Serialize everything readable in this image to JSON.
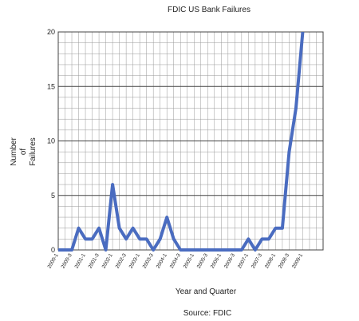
{
  "chart_data": {
    "type": "line",
    "title": "FDIC US Bank Failures",
    "xlabel": "Year and Quarter",
    "ylabel": [
      "Number",
      "of",
      "Failures"
    ],
    "source": "Source: FDIC",
    "categories": [
      "2000-1",
      null,
      "2000-3",
      null,
      "2001-1",
      null,
      "2001-3",
      null,
      "2002-1",
      null,
      "2002-3",
      null,
      "2003-1",
      null,
      "2003-3",
      null,
      "2004-1",
      null,
      "2004-3",
      null,
      "2005-1",
      null,
      "2005-3",
      null,
      "2006-1",
      null,
      "2006-3",
      null,
      "2007-1",
      null,
      "2007-3",
      null,
      "2008-1",
      null,
      "2008-3",
      null,
      "2009-1",
      null,
      null,
      null
    ],
    "series": [
      {
        "name": "Failures",
        "color": "#4a6cc0",
        "values": [
          0,
          0,
          0,
          2,
          1,
          1,
          2,
          0,
          6,
          2,
          1,
          2,
          1,
          1,
          0,
          1,
          3,
          1,
          0,
          0,
          0,
          0,
          0,
          0,
          0,
          0,
          0,
          0,
          1,
          0,
          1,
          1,
          2,
          2,
          9,
          13,
          20,
          null,
          null,
          null
        ]
      }
    ],
    "ylim": [
      0,
      20
    ],
    "yticks": [
      0,
      5,
      10,
      15,
      20
    ],
    "grid": true
  }
}
